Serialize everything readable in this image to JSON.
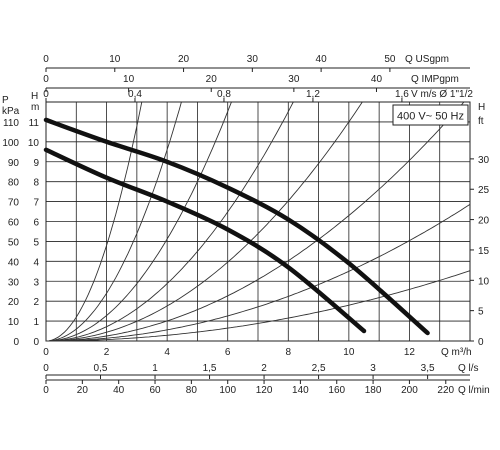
{
  "chart_data": {
    "type": "line",
    "badge": "400 V~ 50 Hz",
    "grid": true,
    "xaxis": {
      "label": "Q m³/h",
      "range": [
        0,
        14
      ],
      "ticks": [
        "0",
        "2",
        "4",
        "6",
        "8",
        "10",
        "12"
      ]
    },
    "top_axes": [
      {
        "label": "Q USgpm",
        "ticks": [
          "0",
          "10",
          "20",
          "30",
          "40",
          "50"
        ]
      },
      {
        "label": "Q IMPgpm",
        "ticks": [
          "0",
          "10",
          "20",
          "30",
          "40"
        ]
      },
      {
        "label": "V m/s Ø 1\"1/2",
        "ticks": [
          "0",
          "0,4",
          "0,8",
          "1,2",
          "1,6"
        ]
      }
    ],
    "bottom_axes": [
      {
        "label": "Q l/s",
        "ticks": [
          "0",
          "0,5",
          "1",
          "1,5",
          "2",
          "2,5",
          "3",
          "3,5"
        ]
      },
      {
        "label": "Q l/min",
        "ticks": [
          "0",
          "20",
          "40",
          "60",
          "80",
          "100",
          "120",
          "140",
          "160",
          "180",
          "200",
          "220"
        ]
      }
    ],
    "left_axes": [
      {
        "label_top": "P",
        "label_bottom": "kPa",
        "range": [
          0,
          120
        ],
        "ticks": [
          "0",
          "10",
          "20",
          "30",
          "40",
          "50",
          "60",
          "70",
          "80",
          "90",
          "100",
          "110"
        ]
      },
      {
        "label_top": "H",
        "label_bottom": "m",
        "range": [
          0,
          12
        ],
        "ticks": [
          "0",
          "1",
          "2",
          "3",
          "4",
          "5",
          "6",
          "7",
          "8",
          "9",
          "10",
          "11"
        ]
      }
    ],
    "right_axis": {
      "label_top": "H",
      "label_bottom": "ft",
      "range": [
        0,
        39.4
      ],
      "ticks": [
        "0",
        "5",
        "10",
        "15",
        "20",
        "25",
        "30"
      ]
    },
    "series": [
      {
        "x": [
          0,
          2,
          4,
          6,
          8,
          10,
          12.6
        ],
        "y": [
          11.1,
          10.0,
          9.0,
          7.7,
          6.1,
          3.9,
          0.4
        ]
      },
      {
        "x": [
          0,
          2,
          4,
          6,
          8,
          10.5
        ],
        "y": [
          9.6,
          8.2,
          7.0,
          5.6,
          3.7,
          0.5
        ]
      }
    ],
    "system_curve_coefficients": [
      1.2,
      0.6,
      0.32,
      0.18,
      0.11,
      0.063,
      0.035,
      0.018
    ]
  }
}
